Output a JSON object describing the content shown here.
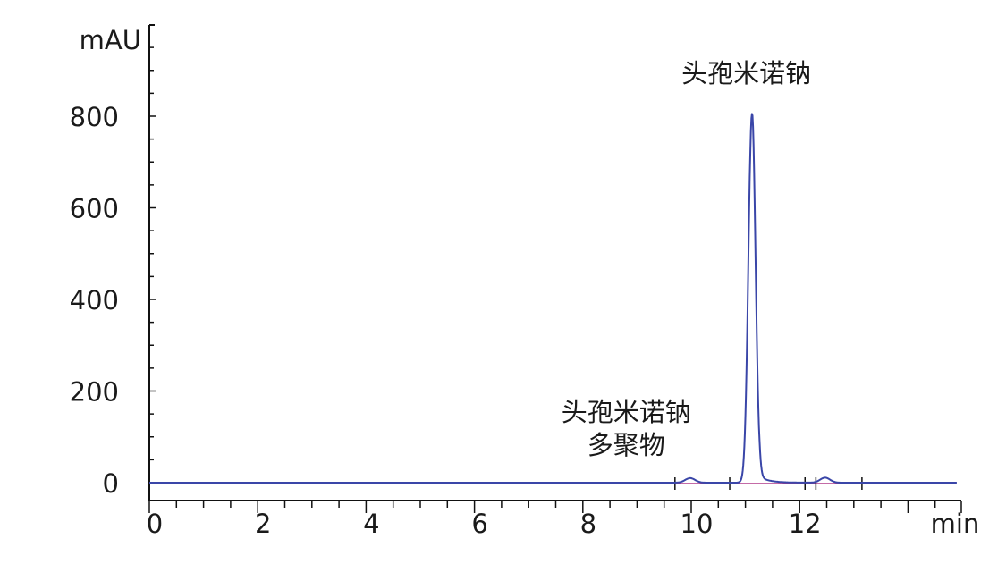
{
  "chart_data": {
    "type": "line",
    "title": "",
    "xlabel": "min",
    "ylabel": "mAU",
    "xlim": [
      0,
      14.9
    ],
    "ylim": [
      -40,
      1000
    ],
    "x_ticks": [
      0,
      2,
      4,
      6,
      8,
      10,
      12
    ],
    "x_tick_labels": [
      "0",
      "2",
      "4",
      "6",
      "8",
      "10",
      "12"
    ],
    "y_ticks": [
      0,
      200,
      400,
      600,
      800
    ],
    "y_tick_labels": [
      "0",
      "200",
      "400",
      "600",
      "800"
    ],
    "grid": false,
    "legend": "none",
    "series": [
      {
        "peaks": [
          {
            "rt": 9.98,
            "height": 10
          },
          {
            "rt": 11.12,
            "height": 805
          },
          {
            "rt": 12.47,
            "height": 11
          }
        ],
        "color": "#3a46a8"
      }
    ],
    "integration_baseline": {
      "start": 9.7,
      "end": 13.15,
      "color": "#b03a8a"
    },
    "integration_markers": [
      9.7,
      10.71,
      12.1,
      12.3,
      13.15
    ],
    "annotations": [
      {
        "text_lines": [
          "头孢米诺钠"
        ],
        "x": 11.1,
        "y": 870
      },
      {
        "text_lines": [
          "头孢米诺钠",
          "多聚物"
        ],
        "x": 8.8,
        "y": 130
      }
    ]
  }
}
